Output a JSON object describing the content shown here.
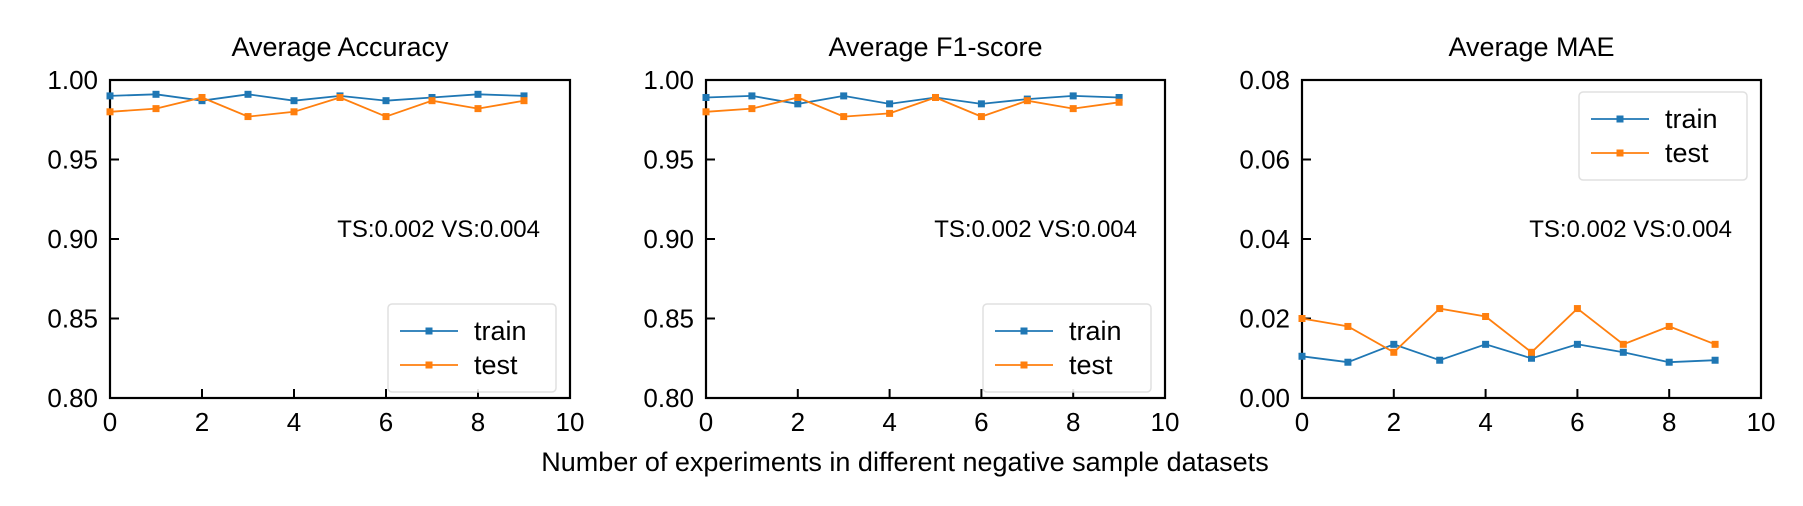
{
  "figure": {
    "xlabel": "Number of experiments in different negative sample datasets"
  },
  "colors": {
    "train": "#1f77b4",
    "test": "#ff7f0e"
  },
  "chart_data": [
    {
      "type": "line",
      "title": "Average Accuracy",
      "xlabel": "",
      "ylabel": "",
      "xlim": [
        0,
        10
      ],
      "ylim": [
        0.8,
        1.0
      ],
      "xticks": [
        0,
        2,
        4,
        6,
        8,
        10
      ],
      "xtick_labels": [
        "0",
        "2",
        "4",
        "6",
        "8",
        "10"
      ],
      "yticks": [
        0.8,
        0.85,
        0.9,
        0.95,
        1.0
      ],
      "ytick_labels": [
        "0.80",
        "0.85",
        "0.90",
        "0.95",
        "1.00"
      ],
      "annotation": "TS:0.002 VS:0.004",
      "legend_position": "lower right",
      "grid": false,
      "x": [
        0,
        1,
        2,
        3,
        4,
        5,
        6,
        7,
        8,
        9
      ],
      "series": [
        {
          "name": "train",
          "values": [
            0.99,
            0.991,
            0.987,
            0.991,
            0.987,
            0.99,
            0.987,
            0.989,
            0.991,
            0.99
          ]
        },
        {
          "name": "test",
          "values": [
            0.98,
            0.982,
            0.989,
            0.977,
            0.98,
            0.989,
            0.977,
            0.987,
            0.982,
            0.987
          ]
        }
      ]
    },
    {
      "type": "line",
      "title": "Average F1-score",
      "xlabel": "",
      "ylabel": "",
      "xlim": [
        0,
        10
      ],
      "ylim": [
        0.8,
        1.0
      ],
      "xticks": [
        0,
        2,
        4,
        6,
        8,
        10
      ],
      "xtick_labels": [
        "0",
        "2",
        "4",
        "6",
        "8",
        "10"
      ],
      "yticks": [
        0.8,
        0.85,
        0.9,
        0.95,
        1.0
      ],
      "ytick_labels": [
        "0.80",
        "0.85",
        "0.90",
        "0.95",
        "1.00"
      ],
      "annotation": "TS:0.002 VS:0.004",
      "legend_position": "lower right",
      "grid": false,
      "x": [
        0,
        1,
        2,
        3,
        4,
        5,
        6,
        7,
        8,
        9
      ],
      "series": [
        {
          "name": "train",
          "values": [
            0.989,
            0.99,
            0.985,
            0.99,
            0.985,
            0.989,
            0.985,
            0.988,
            0.99,
            0.989
          ]
        },
        {
          "name": "test",
          "values": [
            0.98,
            0.982,
            0.989,
            0.977,
            0.979,
            0.989,
            0.977,
            0.987,
            0.982,
            0.986
          ]
        }
      ]
    },
    {
      "type": "line",
      "title": "Average MAE",
      "xlabel": "",
      "ylabel": "",
      "xlim": [
        0,
        10
      ],
      "ylim": [
        0.0,
        0.08
      ],
      "xticks": [
        0,
        2,
        4,
        6,
        8,
        10
      ],
      "xtick_labels": [
        "0",
        "2",
        "4",
        "6",
        "8",
        "10"
      ],
      "yticks": [
        0.0,
        0.02,
        0.04,
        0.06,
        0.08
      ],
      "ytick_labels": [
        "0.00",
        "0.02",
        "0.04",
        "0.06",
        "0.08"
      ],
      "annotation": "TS:0.002 VS:0.004",
      "legend_position": "upper right",
      "grid": false,
      "x": [
        0,
        1,
        2,
        3,
        4,
        5,
        6,
        7,
        8,
        9
      ],
      "series": [
        {
          "name": "train",
          "values": [
            0.0105,
            0.009,
            0.0135,
            0.0095,
            0.0135,
            0.01,
            0.0135,
            0.0115,
            0.009,
            0.0095
          ]
        },
        {
          "name": "test",
          "values": [
            0.02,
            0.018,
            0.0115,
            0.0225,
            0.0205,
            0.0115,
            0.0225,
            0.0135,
            0.018,
            0.0135
          ]
        }
      ]
    }
  ]
}
